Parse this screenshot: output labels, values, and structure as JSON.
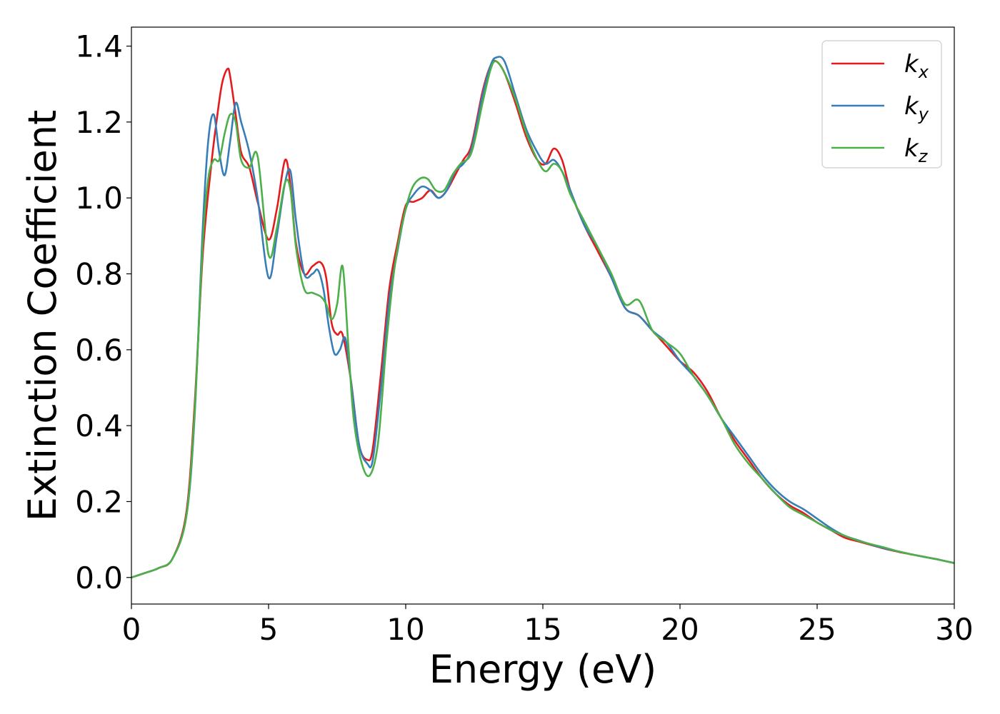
{
  "chart_data": {
    "type": "line",
    "title": "",
    "xlabel": "Energy (eV)",
    "ylabel": "Extinction Coefficient",
    "xlim": [
      0,
      30
    ],
    "ylim": [
      -0.07,
      1.45
    ],
    "xticks": [
      0,
      5,
      10,
      15,
      20,
      25,
      30
    ],
    "xtick_labels": [
      "0",
      "5",
      "10",
      "15",
      "20",
      "25",
      "30"
    ],
    "yticks": [
      0.0,
      0.2,
      0.4,
      0.6,
      0.8,
      1.0,
      1.2,
      1.4
    ],
    "ytick_labels": [
      "0.0",
      "0.2",
      "0.4",
      "0.6",
      "0.8",
      "1.0",
      "1.2",
      "1.4"
    ],
    "grid": false,
    "legend_position": "top-right",
    "series": [
      {
        "name": "kx",
        "legend_base": "k",
        "legend_sub": "x",
        "color": "#e41a1c",
        "x": [
          0,
          0.5,
          1.0,
          1.5,
          2.0,
          2.3,
          2.6,
          2.9,
          3.1,
          3.3,
          3.5,
          3.6,
          3.8,
          4.0,
          4.3,
          4.6,
          5.0,
          5.3,
          5.6,
          5.8,
          6.0,
          6.3,
          6.6,
          6.9,
          7.1,
          7.3,
          7.5,
          7.7,
          8.0,
          8.3,
          8.6,
          8.8,
          9.1,
          9.4,
          9.7,
          10.0,
          10.3,
          10.6,
          10.9,
          11.2,
          11.5,
          11.8,
          12.1,
          12.4,
          12.8,
          13.1,
          13.3,
          13.6,
          14.0,
          14.4,
          14.8,
          15.1,
          15.4,
          15.7,
          16.0,
          16.5,
          17.0,
          17.5,
          18.0,
          18.5,
          19.0,
          19.5,
          20.0,
          20.5,
          21.0,
          21.5,
          22.0,
          22.5,
          23.0,
          23.5,
          24.0,
          24.5,
          25.0,
          25.5,
          26.0,
          26.5,
          27.0,
          27.5,
          28.0,
          28.5,
          29.0,
          29.5,
          30.0
        ],
        "y": [
          0.0,
          0.012,
          0.025,
          0.05,
          0.17,
          0.45,
          0.85,
          1.08,
          1.2,
          1.3,
          1.34,
          1.32,
          1.22,
          1.12,
          1.08,
          0.99,
          0.89,
          0.97,
          1.1,
          1.03,
          0.88,
          0.8,
          0.82,
          0.83,
          0.79,
          0.67,
          0.64,
          0.64,
          0.52,
          0.35,
          0.31,
          0.34,
          0.54,
          0.76,
          0.88,
          0.98,
          0.99,
          1.0,
          1.02,
          1.0,
          1.02,
          1.06,
          1.1,
          1.14,
          1.28,
          1.35,
          1.36,
          1.33,
          1.25,
          1.16,
          1.1,
          1.09,
          1.13,
          1.1,
          1.02,
          0.93,
          0.86,
          0.79,
          0.71,
          0.69,
          0.65,
          0.61,
          0.57,
          0.54,
          0.49,
          0.42,
          0.36,
          0.31,
          0.26,
          0.22,
          0.19,
          0.17,
          0.145,
          0.125,
          0.105,
          0.095,
          0.085,
          0.075,
          0.067,
          0.06,
          0.053,
          0.046,
          0.038
        ]
      },
      {
        "name": "ky",
        "legend_base": "k",
        "legend_sub": "y",
        "color": "#377eb8",
        "x": [
          0,
          0.5,
          1.0,
          1.5,
          2.0,
          2.3,
          2.6,
          2.8,
          3.0,
          3.2,
          3.4,
          3.6,
          3.8,
          4.0,
          4.3,
          4.6,
          5.0,
          5.3,
          5.6,
          5.8,
          6.0,
          6.3,
          6.6,
          6.8,
          7.0,
          7.2,
          7.4,
          7.6,
          7.8,
          8.0,
          8.3,
          8.6,
          8.8,
          9.1,
          9.4,
          9.7,
          10.0,
          10.3,
          10.6,
          10.9,
          11.2,
          11.5,
          11.8,
          12.1,
          12.4,
          12.8,
          13.1,
          13.3,
          13.6,
          14.0,
          14.4,
          14.8,
          15.1,
          15.4,
          15.7,
          16.0,
          16.5,
          17.0,
          17.5,
          18.0,
          18.5,
          19.0,
          19.5,
          20.0,
          20.5,
          21.0,
          21.5,
          22.0,
          22.5,
          23.0,
          23.5,
          24.0,
          24.5,
          25.0,
          25.5,
          26.0,
          26.5,
          27.0,
          27.5,
          28.0,
          28.5,
          29.0,
          29.5,
          30.0
        ],
        "y": [
          0.0,
          0.012,
          0.025,
          0.05,
          0.16,
          0.42,
          0.92,
          1.15,
          1.22,
          1.12,
          1.06,
          1.15,
          1.25,
          1.2,
          1.12,
          1.0,
          0.79,
          0.9,
          1.04,
          1.07,
          0.94,
          0.8,
          0.8,
          0.81,
          0.76,
          0.66,
          0.59,
          0.6,
          0.63,
          0.52,
          0.35,
          0.3,
          0.31,
          0.5,
          0.73,
          0.86,
          0.97,
          1.01,
          1.03,
          1.02,
          1.0,
          1.02,
          1.07,
          1.09,
          1.13,
          1.27,
          1.35,
          1.37,
          1.36,
          1.27,
          1.18,
          1.12,
          1.09,
          1.1,
          1.07,
          1.02,
          0.93,
          0.87,
          0.79,
          0.71,
          0.69,
          0.65,
          0.62,
          0.57,
          0.53,
          0.48,
          0.42,
          0.37,
          0.32,
          0.27,
          0.23,
          0.2,
          0.18,
          0.155,
          0.13,
          0.11,
          0.098,
          0.086,
          0.076,
          0.068,
          0.06,
          0.053,
          0.046,
          0.038
        ]
      },
      {
        "name": "kz",
        "legend_base": "k",
        "legend_sub": "z",
        "color": "#4daf4a",
        "x": [
          0,
          0.5,
          1.0,
          1.5,
          2.0,
          2.3,
          2.6,
          2.8,
          3.0,
          3.2,
          3.4,
          3.6,
          3.8,
          4.0,
          4.3,
          4.6,
          5.0,
          5.3,
          5.6,
          5.8,
          6.0,
          6.3,
          6.6,
          6.9,
          7.1,
          7.3,
          7.5,
          7.7,
          7.9,
          8.1,
          8.4,
          8.7,
          9.0,
          9.3,
          9.6,
          9.9,
          10.2,
          10.5,
          10.8,
          11.1,
          11.4,
          11.7,
          12.0,
          12.4,
          12.8,
          13.1,
          13.3,
          13.6,
          14.0,
          14.4,
          14.8,
          15.1,
          15.4,
          15.7,
          16.0,
          16.5,
          17.0,
          17.5,
          18.0,
          18.5,
          19.0,
          19.5,
          20.0,
          20.5,
          21.0,
          21.5,
          22.0,
          22.5,
          23.0,
          23.5,
          24.0,
          24.5,
          25.0,
          25.5,
          26.0,
          26.5,
          27.0,
          27.5,
          28.0,
          28.5,
          29.0,
          29.5,
          30.0
        ],
        "y": [
          0.0,
          0.012,
          0.025,
          0.05,
          0.16,
          0.43,
          0.88,
          1.05,
          1.1,
          1.1,
          1.17,
          1.22,
          1.2,
          1.1,
          1.08,
          1.11,
          0.85,
          0.92,
          1.04,
          1.02,
          0.87,
          0.76,
          0.75,
          0.74,
          0.72,
          0.68,
          0.72,
          0.82,
          0.62,
          0.42,
          0.3,
          0.27,
          0.36,
          0.62,
          0.82,
          0.94,
          1.02,
          1.05,
          1.05,
          1.02,
          1.02,
          1.06,
          1.09,
          1.12,
          1.25,
          1.34,
          1.36,
          1.33,
          1.26,
          1.17,
          1.1,
          1.07,
          1.09,
          1.07,
          1.01,
          0.94,
          0.87,
          0.8,
          0.72,
          0.73,
          0.65,
          0.62,
          0.59,
          0.53,
          0.48,
          0.42,
          0.35,
          0.3,
          0.26,
          0.22,
          0.185,
          0.165,
          0.145,
          0.125,
          0.11,
          0.097,
          0.087,
          0.078,
          0.068,
          0.06,
          0.053,
          0.046,
          0.038
        ]
      }
    ]
  }
}
